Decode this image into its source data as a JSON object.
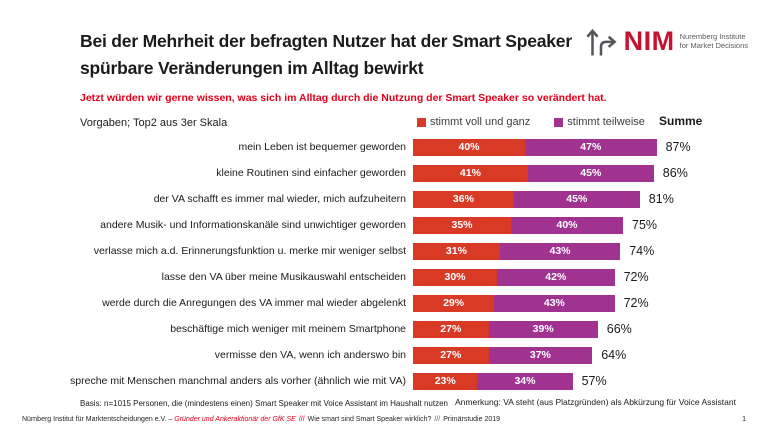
{
  "header": {
    "title": "Bei der Mehrheit der befragten Nutzer hat der Smart Speaker spürbare Veränderungen im Alltag bewirkt",
    "subtitle": "Jetzt würden wir gerne wissen, was sich im Alltag durch die Nutzung der Smart Speaker so verändert hat."
  },
  "logo": {
    "brand": "NIM",
    "subtitle_line1": "Nuremberg Institute",
    "subtitle_line2": "for Market Decisions",
    "brand_color": "#c51230",
    "icon": "branching-arrows-icon"
  },
  "chart_data": {
    "type": "bar",
    "orientation": "horizontal",
    "stacked": true,
    "note_left": "Vorgaben; Top2 aus 3er Skala",
    "sum_header": "Summe",
    "legend_position": "top",
    "x_max": 100,
    "value_suffix": "%",
    "categories": [
      "mein Leben ist bequemer geworden",
      "kleine Routinen sind einfacher geworden",
      "der VA schafft es immer mal wieder, mich aufzuheitern",
      "andere Musik- und Informationskanäle sind unwichtiger geworden",
      "verlasse mich a.d. Erinnerungsfunktion u. merke mir weniger selbst",
      "lasse den VA über meine Musikauswahl entscheiden",
      "werde durch die Anregungen des VA immer mal wieder abgelenkt",
      "beschäftige mich weniger mit meinem Smartphone",
      "vermisse den VA, wenn ich anderswo bin",
      "spreche mit Menschen manchmal anders als vorher (ähnlich wie mit VA)"
    ],
    "series": [
      {
        "name": "stimmt voll und ganz",
        "color": "#d93a26",
        "values": [
          40,
          41,
          36,
          35,
          31,
          30,
          29,
          27,
          27,
          23
        ]
      },
      {
        "name": "stimmt teilweise",
        "color": "#a03390",
        "values": [
          47,
          45,
          45,
          40,
          43,
          42,
          43,
          39,
          37,
          34
        ]
      }
    ],
    "sums": [
      87,
      86,
      81,
      75,
      74,
      72,
      72,
      66,
      64,
      57
    ]
  },
  "footnotes": {
    "basis": "Basis: n=1015 Personen, die (mindestens einen) Smart Speaker mit Voice Assistant im Haushalt nutzen",
    "note": "Anmerkung: VA steht (aus Platzgründen) als Abkürzung für Voice Assistant"
  },
  "footer": {
    "org": "Nürnberg Institut für Marktentscheidungen e.V. – ",
    "org_red": "Gründer und Ankeraktionär der GfK SE",
    "sep1": "///",
    "study": "Wie smart sind Smart Speaker wirklich?",
    "sep2": "///",
    "year": "Primärstudie 2019",
    "page": "1"
  }
}
